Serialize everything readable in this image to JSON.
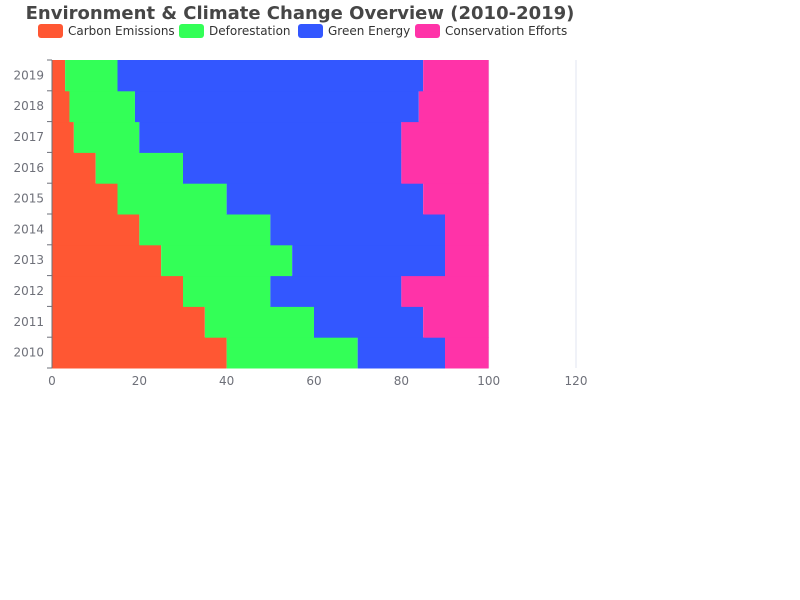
{
  "chart_data": {
    "type": "bar",
    "orientation": "horizontal",
    "stacked": true,
    "title": "Environment & Climate Change Overview (2010-2019)",
    "categories": [
      "2010",
      "2011",
      "2012",
      "2013",
      "2014",
      "2015",
      "2016",
      "2017",
      "2018",
      "2019"
    ],
    "series": [
      {
        "name": "Carbon Emissions",
        "color": "#ff5733",
        "values": [
          40,
          35,
          30,
          25,
          20,
          15,
          10,
          5,
          4,
          3
        ]
      },
      {
        "name": "Deforestation",
        "color": "#33ff57",
        "values": [
          30,
          25,
          20,
          30,
          30,
          25,
          20,
          15,
          15,
          12
        ]
      },
      {
        "name": "Green Energy",
        "color": "#3357ff",
        "values": [
          20,
          25,
          30,
          35,
          40,
          45,
          50,
          60,
          65,
          70
        ]
      },
      {
        "name": "Conservation Efforts",
        "color": "#ff33a8",
        "values": [
          10,
          15,
          20,
          10,
          10,
          15,
          20,
          20,
          16,
          15
        ]
      }
    ],
    "xlim": [
      0,
      120
    ],
    "xticks": [
      "0",
      "20",
      "40",
      "60",
      "80",
      "100",
      "120"
    ],
    "xlabel": "",
    "ylabel": "",
    "legend_position": "top-left",
    "grid": "vertical"
  }
}
